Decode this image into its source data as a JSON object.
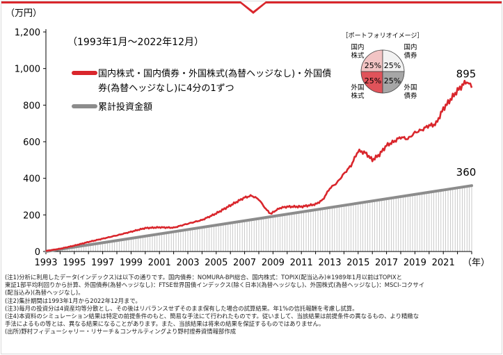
{
  "chart_data": {
    "type": "line",
    "title": "",
    "period_label": "（1993年1月～2022年12月）",
    "ylabel": "（万円）",
    "xlabel": "（年）",
    "ylim": [
      0,
      1200
    ],
    "xlim": [
      1993.0,
      2023.0
    ],
    "y_ticks": [
      "0",
      "200",
      "400",
      "600",
      "800",
      "1,000",
      "1,200"
    ],
    "x_ticks": [
      "1993",
      "1995",
      "1997",
      "1999",
      "2001",
      "2003",
      "2005",
      "2007",
      "2009",
      "2011",
      "2013",
      "2015",
      "2017",
      "2019",
      "2021"
    ],
    "grid": false,
    "legend_position": "top-left",
    "series": [
      {
        "name": "国内株式・国内債券・外国株式(為替ヘッジなし)・外国債券(為替ヘッジなし)に4分の1ずつ",
        "color": "#d9262c",
        "end_label": "895",
        "x": [
          1993.0,
          1994.0,
          1995.0,
          1996.0,
          1997.0,
          1998.0,
          1999.0,
          2000.0,
          2001.0,
          2002.0,
          2003.0,
          2004.0,
          2005.0,
          2006.0,
          2007.0,
          2007.5,
          2008.0,
          2008.5,
          2008.8,
          2009.0,
          2009.5,
          2010.0,
          2011.0,
          2012.0,
          2012.5,
          2013.0,
          2013.5,
          2014.0,
          2014.5,
          2015.0,
          2015.5,
          2016.0,
          2016.5,
          2017.0,
          2017.5,
          2018.0,
          2018.5,
          2019.0,
          2019.5,
          2020.0,
          2020.25,
          2020.5,
          2021.0,
          2021.5,
          2022.0,
          2022.5,
          2022.8,
          2023.0
        ],
        "y": [
          3,
          15,
          32,
          52,
          70,
          88,
          108,
          128,
          132,
          130,
          152,
          172,
          208,
          252,
          295,
          305,
          285,
          232,
          205,
          215,
          238,
          245,
          245,
          258,
          282,
          345,
          375,
          425,
          470,
          550,
          540,
          500,
          530,
          580,
          600,
          625,
          615,
          650,
          665,
          690,
          690,
          700,
          780,
          830,
          880,
          920,
          930,
          895
        ]
      },
      {
        "name": "累計投資金額",
        "color": "#8c8c8c",
        "end_label": "360",
        "x": [
          1993.0,
          2023.0
        ],
        "y": [
          0,
          360
        ]
      }
    ]
  },
  "portfolio": {
    "title": "［ポートフォリオイメージ］",
    "quadrants": [
      {
        "label": "国内株式",
        "value": "25%",
        "color": "#f2c4c4"
      },
      {
        "label": "国内債券",
        "value": "25%",
        "color": "#f2f2f2"
      },
      {
        "label": "外国株式",
        "value": "25%",
        "color": "#e0535a"
      },
      {
        "label": "外国債券",
        "value": "25%",
        "color": "#a6a6a6"
      }
    ]
  },
  "notes": [
    "(注1)分析に利用したデータ(インデックス)は以下の通りです。国内債券：NOMURA-BPI総合、国内株式：TOPIX(配当込み)※1989年1月以前はTOPIXと",
    "東証1部平均利回りから計算、外国債券(為替ヘッジなし)：FTSE世界国債インデックス(除く日本)(為替ヘッジなし)、外国株式(為替ヘッジなし)：MSCI-コクサイ",
    "(配当込み)(為替ヘッジなし)。",
    "(注2)集計期間は1993年1月から2022年12月まで。",
    "(注3)毎月の投資分は4資産均等分散とし、その後はリバランスせずそのまま保有した場合の試算結果。年1%の信託報酬を考慮し試算。",
    "(注4)本資料のシミュレーション結果は特定の前提条件のもと、簡易な手法にて行われたものです。従いまして、当該結果は前提条件の異なるもの、より精緻な",
    "手法によるもの等とは、異なる結果になることがあります。また、当該結果は将来の結果を保証するものではありません。",
    "(出所)野村フィデューシャリー・リサーチ＆コンサルティングより野村證券資情報部作成"
  ]
}
